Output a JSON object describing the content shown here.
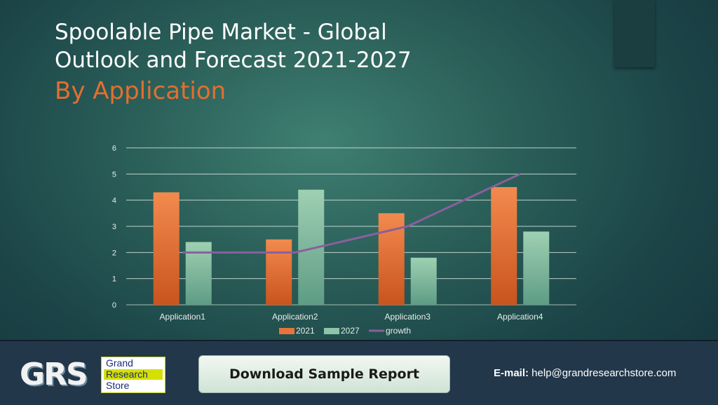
{
  "slide": {
    "title_line1": "Spoolable Pipe Market - Global",
    "title_line2": "Outlook and Forecast 2021-2027",
    "subtitle": "By Application"
  },
  "chart_data": {
    "type": "bar",
    "categories": [
      "Application1",
      "Application2",
      "Application3",
      "Application4"
    ],
    "series": [
      {
        "name": "2021",
        "kind": "bar",
        "values": [
          4.3,
          2.5,
          3.5,
          4.5
        ],
        "color": "#e8743b"
      },
      {
        "name": "2027",
        "kind": "bar",
        "values": [
          2.4,
          4.4,
          1.8,
          2.8
        ],
        "color": "#8fc4a8"
      },
      {
        "name": "growth",
        "kind": "line",
        "values": [
          2,
          2,
          3,
          5
        ],
        "color": "#8a5f9e"
      }
    ],
    "ylim": [
      0,
      6
    ],
    "yticks": [
      "0",
      "1",
      "2",
      "3",
      "4",
      "5",
      "6"
    ],
    "grid": true,
    "legend_position": "bottom"
  },
  "footer": {
    "logo_letters": "GRS",
    "logo_word1": "Grand",
    "logo_word2": "Research",
    "logo_word3": "Store",
    "download_label": "Download Sample Report",
    "email_label": "E-mail:",
    "email_value": " help@grandresearchstore.com"
  },
  "colors": {
    "accent_orange": "#e36f2f",
    "footer_bg": "#22374a"
  }
}
